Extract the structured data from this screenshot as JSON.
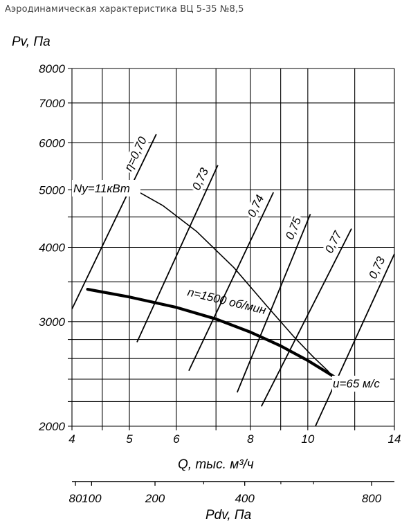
{
  "header": {
    "title": "Аэродинамическая характеристика ВЦ 5-35 №8,5"
  },
  "chart_data": {
    "type": "line",
    "x_scale": "log",
    "y_scale": "log",
    "xlabel": "Q, тыс. м³/ч",
    "ylabel": "Pv, Па",
    "xlim": [
      4,
      14
    ],
    "ylim": [
      2000,
      8000
    ],
    "x_ticks": [
      4,
      5,
      6,
      8,
      10,
      14
    ],
    "x_tick_labels": [
      "4",
      "5",
      "6",
      "8",
      "10",
      "14"
    ],
    "x_grid": [
      4,
      4.5,
      5,
      6,
      7,
      8,
      9,
      10,
      12,
      14
    ],
    "y_ticks": [
      2000,
      3000,
      4000,
      5000,
      6000,
      7000,
      8000
    ],
    "y_tick_labels": [
      "2000",
      "3000",
      "4000",
      "5000",
      "6000",
      "7000",
      "8000"
    ],
    "y_grid": [
      2000,
      2200,
      2400,
      2600,
      2800,
      3000,
      3500,
      4000,
      4500,
      5000,
      6000,
      7000,
      8000
    ],
    "grid": true,
    "secondary_axis": {
      "label": "Pdv, Па",
      "scale": "sqrt",
      "ticks": [
        80,
        100,
        200,
        400,
        800
      ],
      "tick_labels": [
        "80",
        "100",
        "200",
        "400",
        "800"
      ],
      "minor_ticks": [
        300,
        500,
        600
      ]
    },
    "series": [
      {
        "name": "n=1500 об/мин",
        "role": "pressure",
        "x": [
          4.25,
          5,
          6,
          7,
          8,
          9,
          10,
          11.1
        ],
        "y": [
          3400,
          3300,
          3170,
          3030,
          2880,
          2730,
          2580,
          2420
        ]
      },
      {
        "name": "Ny=11кВт",
        "role": "power",
        "x": [
          5.2,
          5.7,
          6.5,
          7.5,
          8.5,
          9.5,
          10.2,
          10.85
        ],
        "y": [
          4950,
          4700,
          4250,
          3700,
          3200,
          2820,
          2620,
          2470
        ]
      }
    ],
    "efficiency_lines": [
      {
        "label": "η=0,70",
        "x": [
          4,
          5.55
        ],
        "y": [
          3150,
          6200
        ]
      },
      {
        "label": "0,73",
        "x": [
          5.15,
          7.05
        ],
        "y": [
          2770,
          5500
        ]
      },
      {
        "label": "0,74",
        "x": [
          6.3,
          8.75
        ],
        "y": [
          2480,
          4950
        ]
      },
      {
        "label": "0,75",
        "x": [
          7.6,
          10.1
        ],
        "y": [
          2280,
          4550
        ]
      },
      {
        "label": "0,77",
        "x": [
          8.35,
          11.85
        ],
        "y": [
          2160,
          4300
        ]
      },
      {
        "label": "0,73",
        "x": [
          10.3,
          14
        ],
        "y": [
          2000,
          3900
        ]
      }
    ],
    "annotations": [
      "u=65 м/с"
    ]
  }
}
